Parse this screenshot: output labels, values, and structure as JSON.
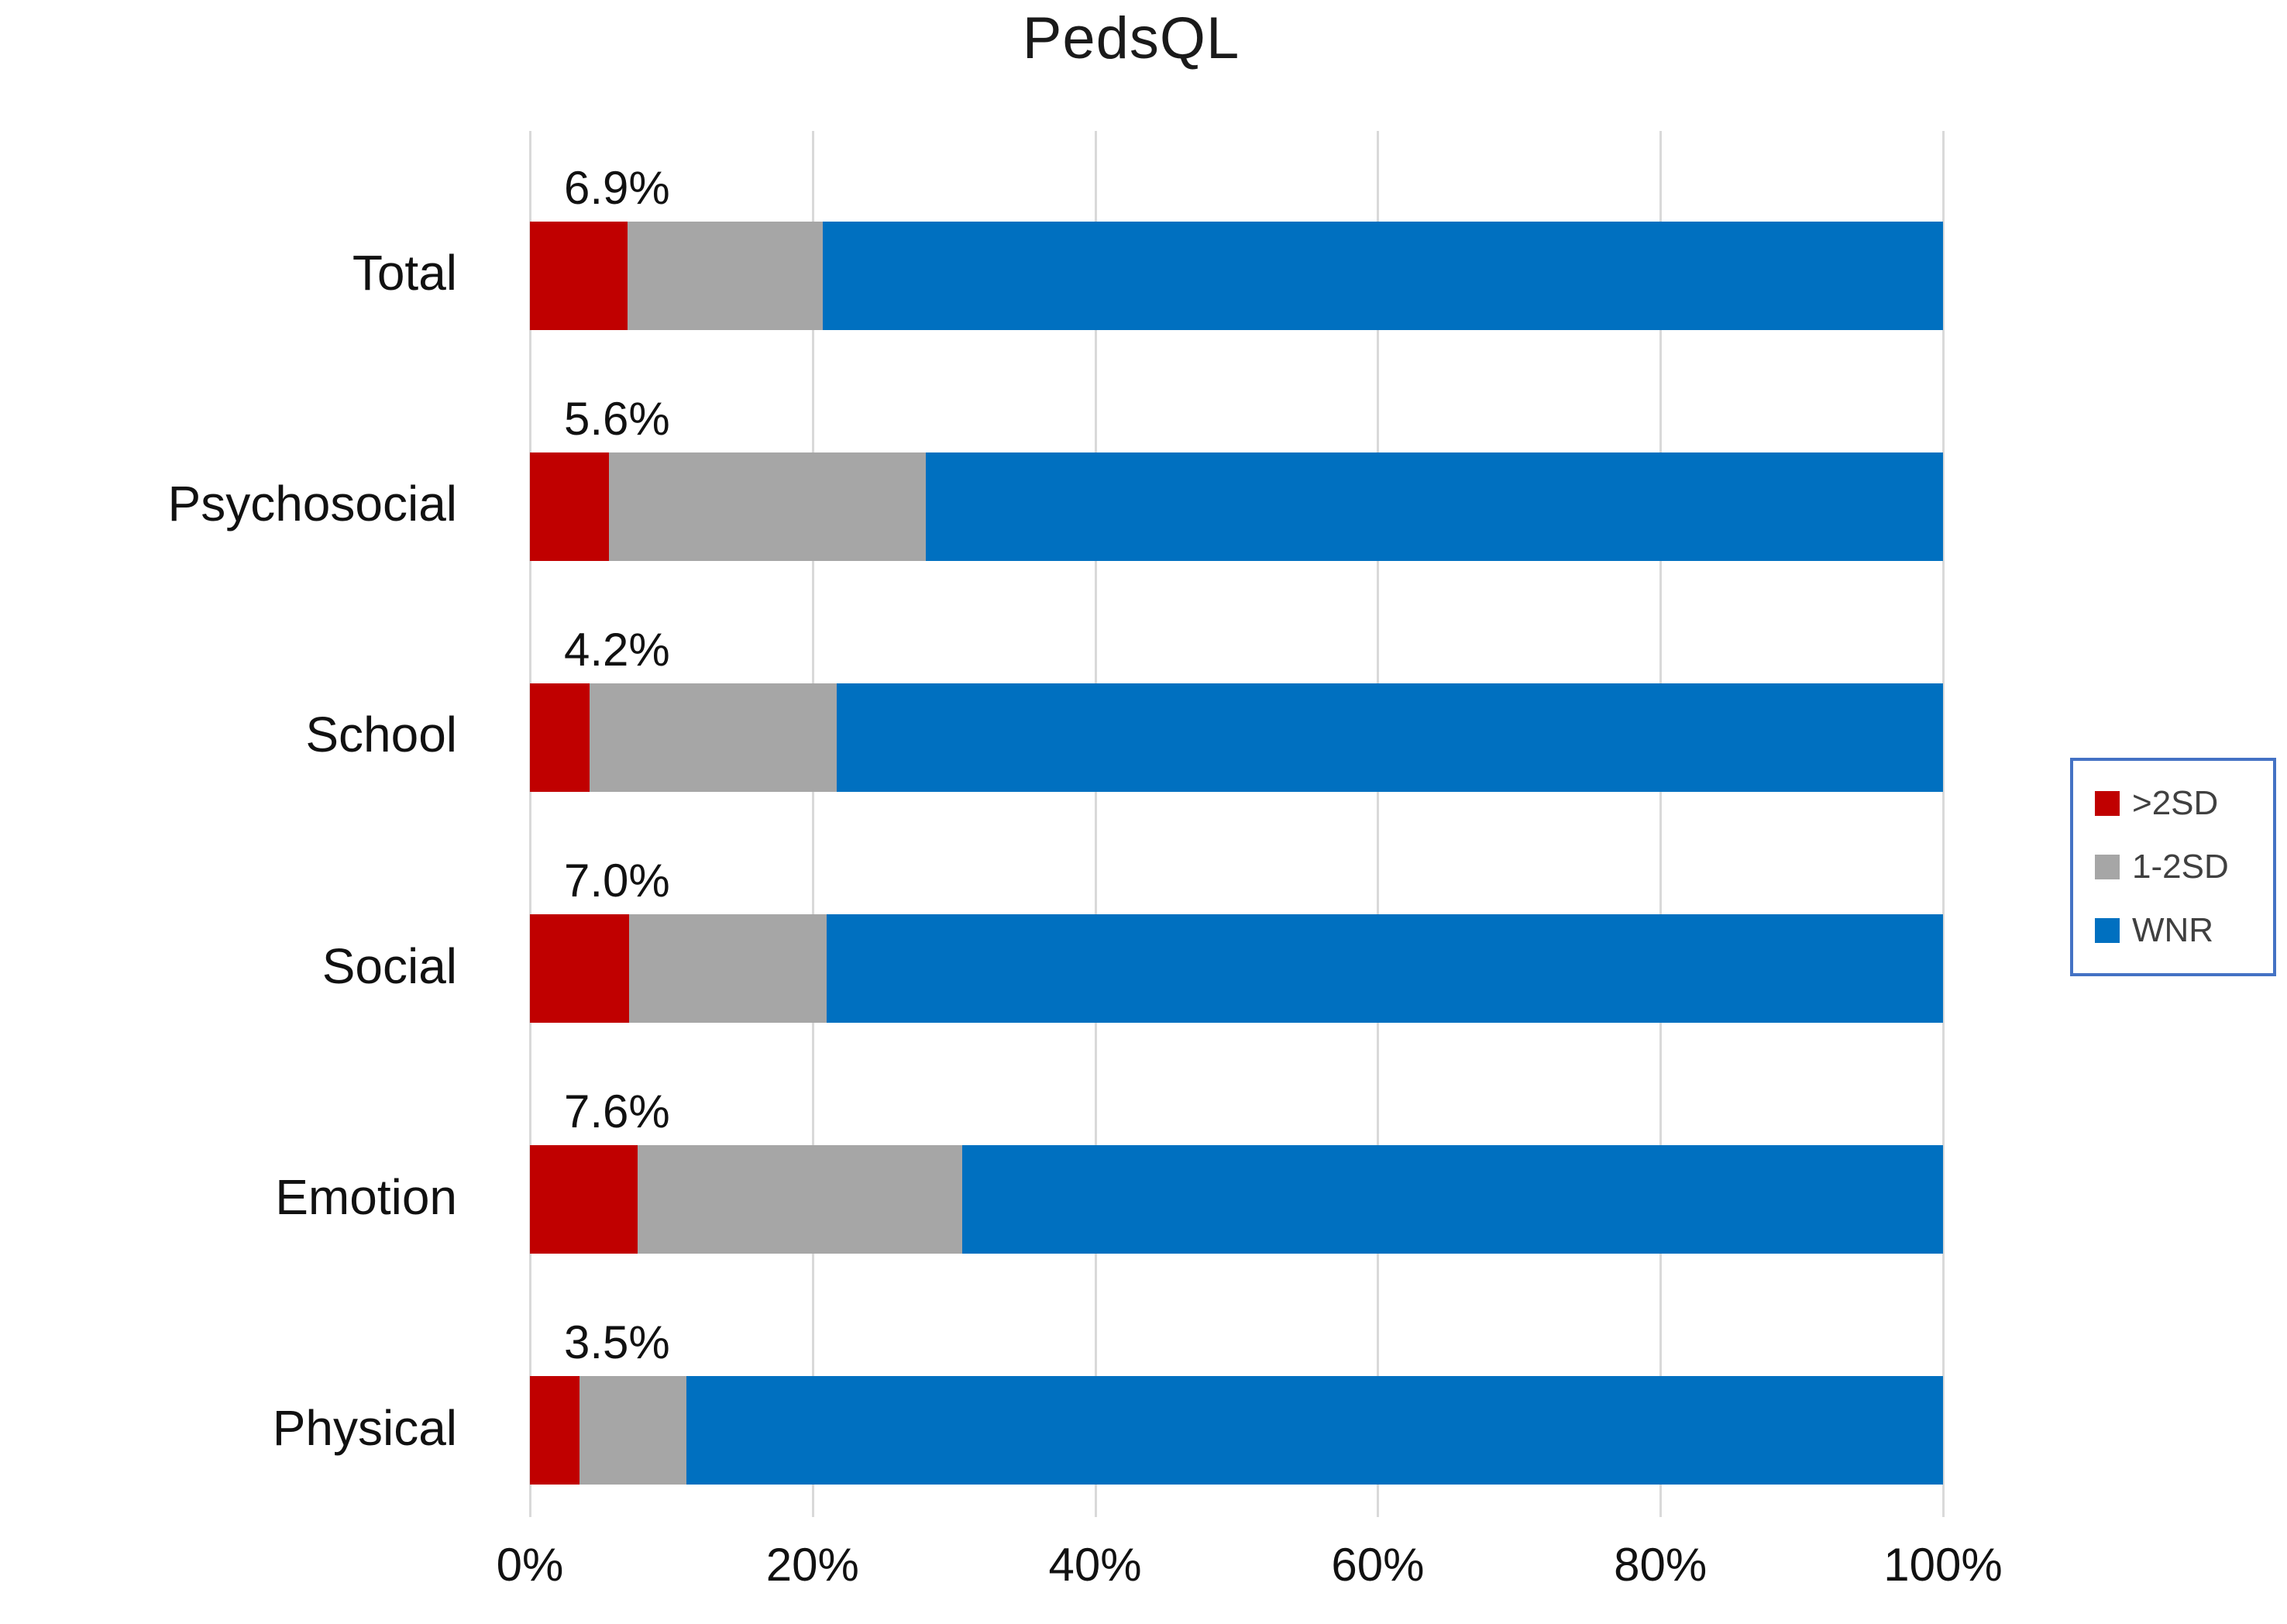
{
  "title": "PedsQL",
  "colors": {
    "red": "#C00000",
    "gray": "#A6A6A6",
    "blue": "#0070C0",
    "gridline": "#D9D9D9",
    "legend_border": "#4472C4",
    "legend_text": "#404040"
  },
  "legend": {
    "items": [
      {
        "label": ">2SD",
        "color": "#C00000"
      },
      {
        "label": "1-2SD",
        "color": "#A6A6A6"
      },
      {
        "label": "WNR",
        "color": "#0070C0"
      }
    ]
  },
  "x_axis": {
    "tick_labels": [
      "0%",
      "20%",
      "40%",
      "60%",
      "80%",
      "100%"
    ],
    "min": 0,
    "max": 100
  },
  "chart_data": {
    "type": "bar",
    "orientation": "horizontal",
    "stacked": true,
    "title": "PedsQL",
    "categories": [
      "Total",
      "Psychosocial",
      "School",
      "Social",
      "Emotion",
      "Physical"
    ],
    "series": [
      {
        "name": ">2SD",
        "color": "#C00000",
        "values": [
          6.9,
          5.6,
          4.2,
          7.0,
          7.6,
          3.5
        ]
      },
      {
        "name": "1-2SD",
        "color": "#A6A6A6",
        "values": [
          13.8,
          22.4,
          17.5,
          14.0,
          23.0,
          7.6
        ]
      },
      {
        "name": "WNR",
        "color": "#0070C0",
        "values": [
          79.3,
          72.0,
          78.3,
          79.0,
          69.4,
          88.9
        ]
      }
    ],
    "data_labels": [
      "6.9%",
      "5.6%",
      "4.2%",
      "7.0%",
      "7.6%",
      "3.5%"
    ],
    "xlabel": "",
    "ylabel": "",
    "xlim": [
      0,
      100
    ],
    "gridlines": "vertical",
    "legend_position": "right"
  }
}
